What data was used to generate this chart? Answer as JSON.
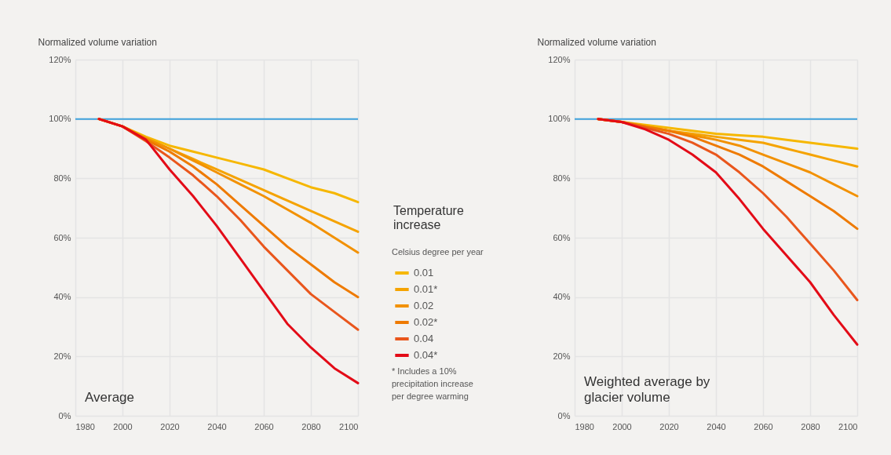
{
  "chart_data": [
    {
      "type": "line",
      "title": "Average",
      "ylabel": "Normalized volume variation",
      "legend_title": "Temperature increase",
      "legend": "right",
      "annotations": [
        "Celsius degree per year",
        "* Includes a 10% precipitation increase per degree warming"
      ],
      "x": [
        1990,
        2000,
        2010,
        2020,
        2030,
        2040,
        2050,
        2060,
        2070,
        2080,
        2090,
        2100
      ],
      "series": [
        {
          "name": "0.01",
          "color": "#f6b700",
          "values": [
            100,
            97.5,
            94,
            91,
            89,
            87,
            85,
            83,
            80,
            77,
            75,
            72
          ]
        },
        {
          "name": "0.01*",
          "color": "#f5a300",
          "values": [
            100,
            97.5,
            93.5,
            90,
            86.5,
            83,
            79.5,
            76,
            72.5,
            69,
            65.5,
            62
          ]
        },
        {
          "name": "0.02",
          "color": "#f29100",
          "values": [
            100,
            97.5,
            93.5,
            90,
            86,
            82,
            78,
            74,
            69.5,
            65,
            60,
            55
          ]
        },
        {
          "name": "0.02*",
          "color": "#ee7a00",
          "values": [
            100,
            97.5,
            93,
            89,
            84,
            78,
            71,
            64,
            57,
            51,
            45,
            40
          ]
        },
        {
          "name": "0.04",
          "color": "#e9561c",
          "values": [
            100,
            97.5,
            92.5,
            87,
            81,
            74,
            66,
            57,
            49,
            41,
            35,
            29
          ]
        },
        {
          "name": "0.04*",
          "color": "#e30b17",
          "values": [
            100,
            97.5,
            93,
            83,
            74,
            64,
            53,
            42,
            31,
            23,
            16,
            11
          ]
        }
      ],
      "xlim": [
        1980,
        2100
      ],
      "xticks": [
        1980,
        2000,
        2020,
        2040,
        2060,
        2080,
        2100
      ],
      "ylim": [
        0,
        120
      ],
      "yticks": [
        {
          "value": 0,
          "label": "0%"
        },
        {
          "value": 20,
          "label": "20%"
        },
        {
          "value": 40,
          "label": "40%"
        },
        {
          "value": 60,
          "label": "60%"
        },
        {
          "value": 80,
          "label": "80%"
        },
        {
          "value": 100,
          "label": "100%"
        },
        {
          "value": 120,
          "label": "120%"
        }
      ],
      "ref_lines": [
        {
          "axis": "y",
          "value": 100,
          "color": "#3fa2dc"
        }
      ],
      "grid": true
    },
    {
      "type": "line",
      "title": "Weighted average by glacier volume",
      "ylabel": "Normalized volume variation",
      "x": [
        1990,
        2000,
        2010,
        2020,
        2030,
        2040,
        2050,
        2060,
        2070,
        2080,
        2090,
        2100
      ],
      "series": [
        {
          "color": "#f6b700",
          "values": [
            100,
            99,
            98,
            97,
            96,
            95,
            94.5,
            94,
            93,
            92,
            91,
            90
          ]
        },
        {
          "color": "#f5a300",
          "values": [
            100,
            99,
            97.5,
            96,
            95,
            94,
            93,
            92,
            90,
            88,
            86,
            84
          ]
        },
        {
          "color": "#f29100",
          "values": [
            100,
            99,
            97.5,
            96,
            94.5,
            93,
            91,
            88,
            85,
            82,
            78,
            74
          ]
        },
        {
          "color": "#ee7a00",
          "values": [
            100,
            99,
            97.5,
            96,
            94,
            91,
            88,
            84,
            79,
            74,
            69,
            63
          ]
        },
        {
          "color": "#e9561c",
          "values": [
            100,
            99,
            97,
            95,
            92,
            88,
            82,
            75,
            67,
            58,
            49,
            39
          ]
        },
        {
          "color": "#e30b17",
          "values": [
            100,
            99,
            96.5,
            93,
            88,
            82,
            73,
            63,
            54,
            45,
            34,
            24
          ]
        }
      ],
      "xlim": [
        1980,
        2100
      ],
      "xticks": [
        1980,
        2000,
        2020,
        2040,
        2060,
        2080,
        2100
      ],
      "ylim": [
        0,
        120
      ],
      "yticks": [
        {
          "value": 0,
          "label": "0%"
        },
        {
          "value": 20,
          "label": "20%"
        },
        {
          "value": 40,
          "label": "40%"
        },
        {
          "value": 60,
          "label": "60%"
        },
        {
          "value": 80,
          "label": "80%"
        },
        {
          "value": 100,
          "label": "100%"
        },
        {
          "value": 120,
          "label": "120%"
        }
      ],
      "ref_lines": [
        {
          "axis": "y",
          "value": 100,
          "color": "#3fa2dc"
        }
      ],
      "grid": true,
      "legend": false
    }
  ]
}
